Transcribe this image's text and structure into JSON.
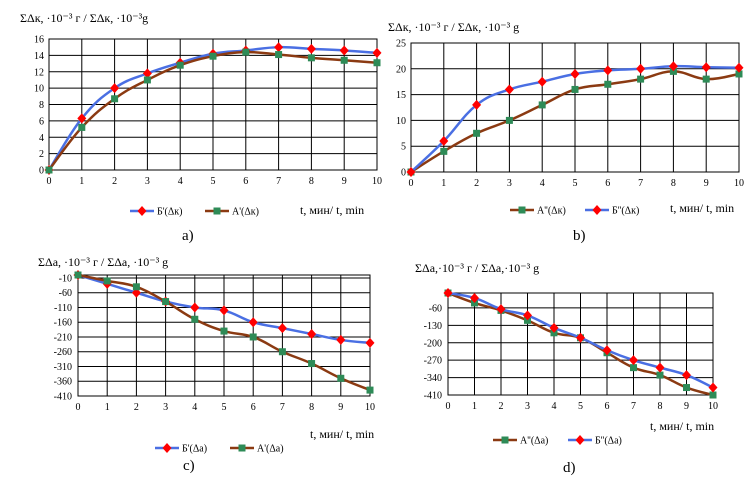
{
  "colors": {
    "blue_line": "#4a6fe3",
    "brown_line": "#8b3a12",
    "red_marker": "#ff0000",
    "green_marker": "#2e8b57",
    "grid": "#000000"
  },
  "chart_data": [
    {
      "type": "line",
      "caption": "a)",
      "title": "ΣΔк, ·10⁻³ г / ΣΔк, ·10⁻³g",
      "xlabel": "t, мин/ t, min",
      "x": [
        0,
        1,
        2,
        3,
        4,
        5,
        6,
        7,
        8,
        9,
        10
      ],
      "xlim": [
        0,
        10
      ],
      "ylim": [
        0,
        16
      ],
      "yticks": [
        0,
        2,
        4,
        6,
        8,
        10,
        12,
        14,
        16
      ],
      "grid": true,
      "legend_position": "bottom",
      "series": [
        {
          "name": "Б'(Δк)",
          "color": "blue_line",
          "marker": "diamond",
          "values": [
            0,
            6.3,
            10,
            11.8,
            13.1,
            14.2,
            14.6,
            15.0,
            14.8,
            14.6,
            14.3
          ]
        },
        {
          "name": "А'(Δк)",
          "color": "brown_line",
          "marker": "square",
          "values": [
            0,
            5.2,
            8.7,
            11,
            12.8,
            13.9,
            14.4,
            14.1,
            13.7,
            13.4,
            13.1
          ]
        }
      ]
    },
    {
      "type": "line",
      "caption": "b)",
      "title": "ΣΔк, ·10⁻³ г  / ΣΔк, ·10⁻³ g",
      "xlabel": "t, мин/ t, min",
      "x": [
        0,
        1,
        2,
        3,
        4,
        5,
        6,
        7,
        8,
        9,
        10
      ],
      "xlim": [
        0,
        10
      ],
      "ylim": [
        0,
        25
      ],
      "yticks": [
        0,
        5,
        10,
        15,
        20,
        25
      ],
      "grid": true,
      "legend_position": "bottom",
      "series": [
        {
          "name": "А''(Δк)",
          "color": "brown_line",
          "marker": "square",
          "values": [
            0,
            4,
            7.5,
            10,
            13,
            16,
            17,
            18,
            19.5,
            18,
            19
          ]
        },
        {
          "name": "Б''(Δк)",
          "color": "blue_line",
          "marker": "diamond",
          "values": [
            0,
            6,
            13,
            16,
            17.5,
            19,
            19.7,
            20,
            20.5,
            20.3,
            20.2
          ]
        }
      ]
    },
    {
      "type": "line",
      "caption": "c)",
      "title": "ΣΔа, ·10⁻³ г  /  ΣΔа, ·10⁻³ g",
      "xlabel": "t, мин/ t, min",
      "x": [
        0,
        1,
        2,
        3,
        4,
        5,
        6,
        7,
        8,
        9,
        10
      ],
      "xlim": [
        0,
        10
      ],
      "ylim": [
        -410,
        0
      ],
      "yticks": [
        -410,
        -360,
        -310,
        -260,
        -210,
        -160,
        -110,
        -60,
        -10
      ],
      "grid": true,
      "legend_position": "bottom",
      "series": [
        {
          "name": "Б'(Δа)",
          "color": "blue_line",
          "marker": "diamond",
          "values": [
            0,
            -30,
            -60,
            -90,
            -110,
            -120,
            -160,
            -180,
            -200,
            -220,
            -230
          ]
        },
        {
          "name": "А'(Δа)",
          "color": "brown_line",
          "marker": "square",
          "values": [
            0,
            -20,
            -40,
            -90,
            -150,
            -190,
            -210,
            -260,
            -300,
            -350,
            -390
          ]
        }
      ]
    },
    {
      "type": "line",
      "caption": "d)",
      "title": "ΣΔа,·10⁻³ г  /  ΣΔа,·10⁻³ g",
      "xlabel": "t, мин/ t, min",
      "x": [
        0,
        1,
        2,
        3,
        4,
        5,
        6,
        7,
        8,
        9,
        10
      ],
      "xlim": [
        0,
        10
      ],
      "ylim": [
        -410,
        0
      ],
      "yticks": [
        -410,
        -340,
        -270,
        -200,
        -130,
        -60
      ],
      "grid": true,
      "legend_position": "bottom",
      "series": [
        {
          "name": "А''(Δа)",
          "color": "brown_line",
          "marker": "square",
          "values": [
            0,
            -40,
            -70,
            -110,
            -160,
            -180,
            -240,
            -300,
            -330,
            -380,
            -410
          ]
        },
        {
          "name": "Б''(Δа)",
          "color": "blue_line",
          "marker": "diamond",
          "values": [
            0,
            -20,
            -65,
            -90,
            -140,
            -180,
            -230,
            -270,
            -300,
            -330,
            -380
          ]
        }
      ]
    }
  ]
}
